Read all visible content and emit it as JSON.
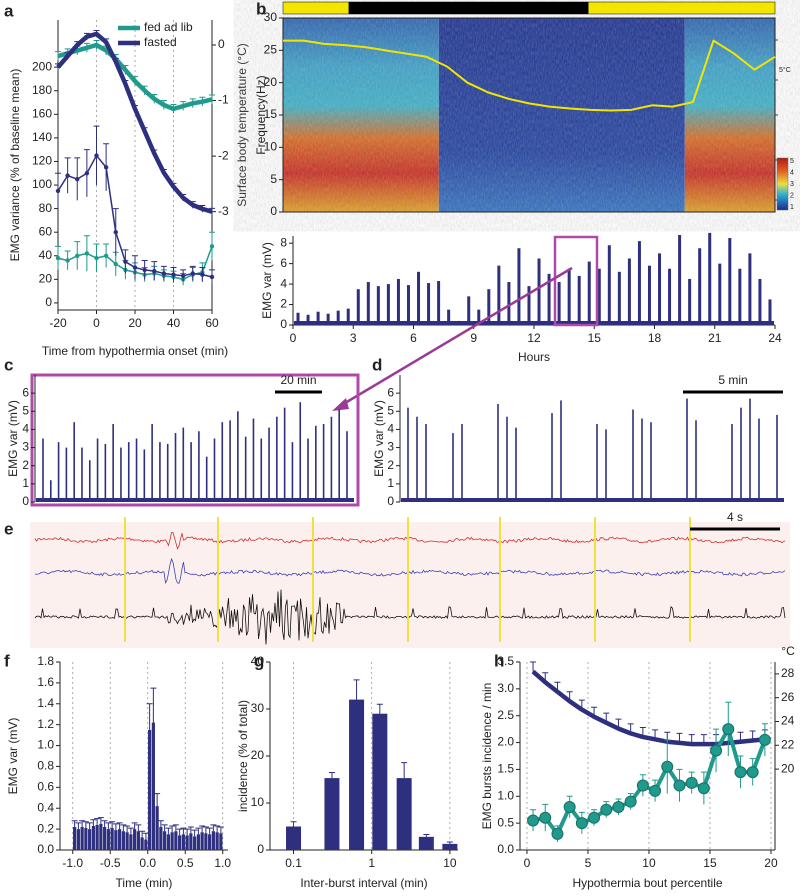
{
  "chart_data": [
    {
      "type": "line",
      "label": "a",
      "xlabel": "Time from hypothermia onset (min)",
      "ylabel": "EMG variance (% of baseline mean)",
      "y2label": "Surface body temperature (°C)",
      "x": [
        -20,
        -15,
        -10,
        -5,
        0,
        5,
        10,
        15,
        20,
        25,
        30,
        35,
        40,
        45,
        50,
        55,
        60
      ],
      "xlim": [
        -20,
        60
      ],
      "xticks": [
        -20,
        0,
        20,
        40,
        60
      ],
      "ylim": [
        -6,
        240
      ],
      "yticks": [
        0,
        20,
        40,
        60,
        80,
        100,
        120,
        140,
        160,
        180,
        200
      ],
      "y2lim": [
        -4.77,
        0.45
      ],
      "y2ticks": [
        0,
        -1,
        -2,
        -3
      ],
      "grid": "x",
      "legend": "upper right",
      "series": [
        {
          "name": "fed ad lib",
          "color": "#1f9a8c",
          "axis": "y2",
          "values": [
            -0.2,
            -0.15,
            -0.1,
            -0.05,
            0.0,
            -0.1,
            -0.25,
            -0.45,
            -0.65,
            -0.82,
            -0.97,
            -1.08,
            -1.15,
            -1.1,
            -1.05,
            -1.02,
            -0.98
          ],
          "errors": [
            0.08,
            0.08,
            0.08,
            0.08,
            0.08,
            0.08,
            0.08,
            0.08,
            0.08,
            0.08,
            0.08,
            0.08,
            0.08,
            0.08,
            0.08,
            0.08,
            0.08
          ]
        },
        {
          "name": "fasted",
          "color": "#2e2f7f",
          "axis": "y2",
          "values": [
            -0.4,
            -0.2,
            0.0,
            0.15,
            0.2,
            0.05,
            -0.3,
            -0.7,
            -1.15,
            -1.55,
            -1.95,
            -2.3,
            -2.55,
            -2.75,
            -2.88,
            -2.95,
            -3.0
          ],
          "errors": [
            0.06,
            0.06,
            0.06,
            0.06,
            0.06,
            0.06,
            0.06,
            0.06,
            0.06,
            0.06,
            0.06,
            0.06,
            0.06,
            0.06,
            0.06,
            0.06,
            0.06
          ]
        },
        {
          "color": "#1f9a8c",
          "marker": "dot",
          "values": [
            38,
            36,
            40,
            42,
            38,
            40,
            33,
            28,
            26,
            24,
            25,
            23,
            22,
            20,
            24,
            26,
            48
          ],
          "errors": [
            10,
            8,
            12,
            15,
            12,
            10,
            10,
            8,
            8,
            6,
            6,
            5,
            5,
            5,
            6,
            8,
            12
          ]
        },
        {
          "color": "#2e2f7f",
          "marker": "dot",
          "values": [
            95,
            108,
            105,
            110,
            125,
            115,
            60,
            35,
            30,
            28,
            27,
            25,
            24,
            23,
            25,
            24,
            22
          ],
          "errors": [
            15,
            15,
            18,
            20,
            25,
            20,
            20,
            10,
            10,
            8,
            8,
            6,
            6,
            5,
            6,
            6,
            6
          ]
        }
      ]
    },
    {
      "type": "spectrogram",
      "label": "b",
      "ylabel": "Frequency(Hz)",
      "ylim": [
        0,
        30
      ],
      "yticks": [
        0,
        5,
        10,
        15,
        20,
        25,
        30
      ],
      "xlim": [
        0,
        24
      ],
      "dark_period": [
        3.2,
        14.9
      ],
      "colorbar_ticks": [
        1,
        2,
        3,
        4,
        5
      ],
      "annotation": "5°C",
      "x": [
        0,
        1,
        2,
        3,
        4,
        5,
        6,
        7,
        8,
        9,
        10,
        11,
        12,
        13,
        14,
        15,
        16,
        17,
        18,
        19,
        20,
        21,
        22,
        23,
        24
      ],
      "series": [
        {
          "color": "#f2e600",
          "values": [
            26.5,
            26.5,
            26,
            25.8,
            25.5,
            25,
            24.5,
            24,
            22.5,
            20,
            18.5,
            17.5,
            16.8,
            16.3,
            16,
            15.8,
            15.7,
            15.8,
            16.5,
            16.3,
            17,
            26.5,
            24.5,
            22,
            24
          ]
        }
      ]
    },
    {
      "type": "trace",
      "xlabel": "Hours",
      "ylabel": "EMG var (mV)",
      "color": "#2e2f7f",
      "xlim": [
        0,
        24
      ],
      "xticks": [
        0,
        3,
        6,
        9,
        12,
        15,
        18,
        21,
        24
      ],
      "ylim": [
        0,
        8.7
      ],
      "yticks": [
        0,
        2,
        4,
        6,
        8
      ],
      "x": [
        0.25,
        0.75,
        1.25,
        1.75,
        2.25,
        2.75,
        3.25,
        3.75,
        4.25,
        4.75,
        5.25,
        5.75,
        6.25,
        6.75,
        7.25,
        7.75,
        8.25,
        8.75,
        9.25,
        9.75,
        10.25,
        10.75,
        11.25,
        11.75,
        12.25,
        12.75,
        13.25,
        13.75,
        14.25,
        14.75,
        15.25,
        15.75,
        16.25,
        16.75,
        17.25,
        17.75,
        18.25,
        18.75,
        19.25,
        19.75,
        20.25,
        20.75,
        21.25,
        21.75,
        22.25,
        22.75,
        23.25,
        23.75
      ],
      "values": [
        1.2,
        1.0,
        1.3,
        1.1,
        1.4,
        1.6,
        3.5,
        4.2,
        3.8,
        4.0,
        4.5,
        3.9,
        5.2,
        4.1,
        4.3,
        1.5,
        0.4,
        2.8,
        1.5,
        3.5,
        5.8,
        4.2,
        7.5,
        3.8,
        6.5,
        5.0,
        4.2,
        5.5,
        4.8,
        6.2,
        5.5,
        7.8,
        5.2,
        6.5,
        8.2,
        5.8,
        7.0,
        5.5,
        8.8,
        4.5,
        7.5,
        9.0,
        6.0,
        8.5,
        5.5,
        7.0,
        4.5,
        2.5
      ]
    },
    {
      "type": "trace",
      "label": "c",
      "ylabel": "EMG var (mV)",
      "scalebar": "20 min",
      "color": "#2e2f7f",
      "ylim": [
        0,
        7
      ],
      "yticks": [
        0,
        1,
        2,
        3,
        4,
        5,
        6
      ],
      "values": [
        3.5,
        1.2,
        3.3,
        3.0,
        4.4,
        3.0,
        2.3,
        3.5,
        3.2,
        4.3,
        3.0,
        3.3,
        3.5,
        2.9,
        4.3,
        3.3,
        3.2,
        3.8,
        4.1,
        3.3,
        3.9,
        2.5,
        3.5,
        4.4,
        4.5,
        5.0,
        3.6,
        4.6,
        3.5,
        4.1,
        4.7,
        5.2,
        3.3,
        5.5,
        3.5,
        4.2,
        4.3,
        4.7,
        5.1,
        3.9
      ]
    },
    {
      "type": "trace",
      "label": "d",
      "ylabel": "EMG var (mV)",
      "scalebar": "5 min",
      "color": "#2e2f7f",
      "ylim": [
        0,
        7
      ],
      "yticks": [
        0,
        1,
        2,
        3,
        4,
        5,
        6
      ],
      "values": [
        5.2,
        4.7,
        4.3,
        null,
        null,
        3.8,
        4.3,
        null,
        null,
        null,
        5.4,
        4.7,
        4.1,
        null,
        null,
        null,
        4.9,
        5.6,
        null,
        null,
        null,
        4.3,
        4.0,
        null,
        null,
        5.1,
        4.6,
        4.4,
        null,
        null,
        null,
        5.7,
        4.5,
        null,
        null,
        null,
        4.3,
        5.2,
        5.7,
        4.6,
        null,
        4.8
      ]
    },
    {
      "type": "raw_trace",
      "label": "e",
      "scalebar": "4 s"
    },
    {
      "type": "bar",
      "label": "f",
      "xlabel": "Time (min)",
      "ylabel": "EMG var (mV)",
      "color": "#2e2f7f",
      "grid": "x",
      "error_bars": "upper",
      "xlim": [
        -1.17,
        1.07
      ],
      "xticks": [
        {
          "value": -1,
          "label": "-1.0"
        },
        -0.5,
        {
          "value": 0,
          "label": "0.0"
        },
        0.5,
        {
          "value": 1,
          "label": "1.0"
        }
      ],
      "ylim": [
        0,
        1.8
      ],
      "yticks": [
        {
          "value": 0,
          "label": "0.0"
        },
        0.2,
        0.4,
        0.6,
        0.8,
        {
          "value": 1,
          "label": "1.0"
        },
        1.2,
        1.4,
        1.6,
        1.8
      ],
      "x": [
        -0.975,
        -0.925,
        -0.875,
        -0.825,
        -0.775,
        -0.725,
        -0.675,
        -0.625,
        -0.575,
        -0.525,
        -0.475,
        -0.425,
        -0.375,
        -0.325,
        -0.275,
        -0.225,
        -0.175,
        -0.125,
        -0.075,
        -0.025,
        0.025,
        0.075,
        0.125,
        0.175,
        0.225,
        0.275,
        0.325,
        0.375,
        0.425,
        0.475,
        0.525,
        0.575,
        0.625,
        0.675,
        0.725,
        0.775,
        0.825,
        0.875,
        0.925,
        0.975
      ],
      "values": [
        0.22,
        0.2,
        0.22,
        0.21,
        0.2,
        0.23,
        0.24,
        0.25,
        0.22,
        0.2,
        0.21,
        0.19,
        0.2,
        0.18,
        0.17,
        0.15,
        0.2,
        0.18,
        0.12,
        0.1,
        1.15,
        1.22,
        0.42,
        0.22,
        0.18,
        0.15,
        0.17,
        0.18,
        0.14,
        0.15,
        0.14,
        0.16,
        0.13,
        0.15,
        0.17,
        0.16,
        0.15,
        0.18,
        0.17,
        0.16
      ],
      "errors": [
        0.06,
        0.06,
        0.06,
        0.06,
        0.06,
        0.06,
        0.06,
        0.06,
        0.06,
        0.06,
        0.06,
        0.06,
        0.06,
        0.06,
        0.06,
        0.06,
        0.06,
        0.06,
        0.06,
        0.06,
        0.25,
        0.33,
        0.12,
        0.06,
        0.06,
        0.06,
        0.06,
        0.06,
        0.06,
        0.06,
        0.06,
        0.06,
        0.06,
        0.06,
        0.06,
        0.06,
        0.06,
        0.06,
        0.06,
        0.06
      ]
    },
    {
      "type": "bar",
      "label": "g",
      "xlabel": "Inter-burst interval (min)",
      "ylabel": "incidence (% of total)",
      "color": "#2e2f7f",
      "grid": "x",
      "error_bars": "upper",
      "xscale": "log",
      "xlim": [
        0.05,
        12.7
      ],
      "xticks": [
        0.1,
        1,
        10
      ],
      "ylim": [
        0,
        40
      ],
      "yticks": [
        0,
        10,
        20,
        30,
        40
      ],
      "x": [
        0.1,
        0.31,
        0.64,
        1.27,
        2.6,
        5,
        10
      ],
      "values": [
        5,
        15.3,
        32,
        29,
        15.3,
        2.8,
        1.3
      ],
      "errors": [
        1,
        1.2,
        4.2,
        2.0,
        3.3,
        0.5,
        0.4
      ]
    },
    {
      "type": "line",
      "label": "h",
      "xlabel": "Hypothermia bout percentile",
      "ylabel": "EMG bursts incidence / min",
      "y2label": "°C",
      "grid": "x",
      "x": [
        0.5,
        1.5,
        2.5,
        3.5,
        4.5,
        5.5,
        6.5,
        7.5,
        8.5,
        9.5,
        10.5,
        11.5,
        12.5,
        13.5,
        14.5,
        15.5,
        16.5,
        17.5,
        18.5,
        19.5
      ],
      "xlim": [
        -0.57,
        20.33
      ],
      "xticks": [
        0,
        5,
        10,
        15,
        20
      ],
      "ylim": [
        0,
        3.5
      ],
      "yticks": [
        {
          "value": 0,
          "label": "0.0"
        },
        0.5,
        {
          "value": 1,
          "label": "1.0"
        },
        1.5,
        {
          "value": 2,
          "label": "2.0"
        },
        2.5,
        {
          "value": 3,
          "label": "3.0"
        },
        3.5
      ],
      "y2lim": [
        13.2,
        29
      ],
      "y2ticks": [
        20,
        22,
        24,
        26,
        28
      ],
      "series": [
        {
          "color": "#2e2f7f",
          "axis": "y2",
          "error_bars": "upper",
          "values": [
            28.2,
            27.3,
            26.5,
            25.7,
            25.0,
            24.4,
            23.9,
            23.4,
            23.0,
            22.7,
            22.5,
            22.3,
            22.2,
            22.1,
            22.1,
            22.1,
            22.2,
            22.3,
            22.4,
            22.5
          ],
          "errors": [
            0.8,
            0.8,
            0.8,
            0.8,
            0.8,
            0.8,
            0.8,
            0.8,
            0.8,
            0.8,
            0.8,
            0.8,
            0.8,
            0.8,
            0.8,
            0.8,
            0.8,
            0.8,
            0.8,
            0.8
          ]
        },
        {
          "color": "#1f9a8c",
          "marker": "circle",
          "values": [
            0.55,
            0.6,
            0.3,
            0.8,
            0.5,
            0.6,
            0.75,
            0.8,
            0.9,
            1.2,
            1.1,
            1.55,
            1.2,
            1.25,
            1.15,
            1.85,
            2.25,
            1.45,
            1.45,
            2.05
          ],
          "errors": [
            0.2,
            0.25,
            0.15,
            0.2,
            0.2,
            0.15,
            0.15,
            0.15,
            0.15,
            0.2,
            0.2,
            0.5,
            0.3,
            0.2,
            0.3,
            0.4,
            0.5,
            0.3,
            0.25,
            0.3
          ]
        }
      ]
    }
  ]
}
